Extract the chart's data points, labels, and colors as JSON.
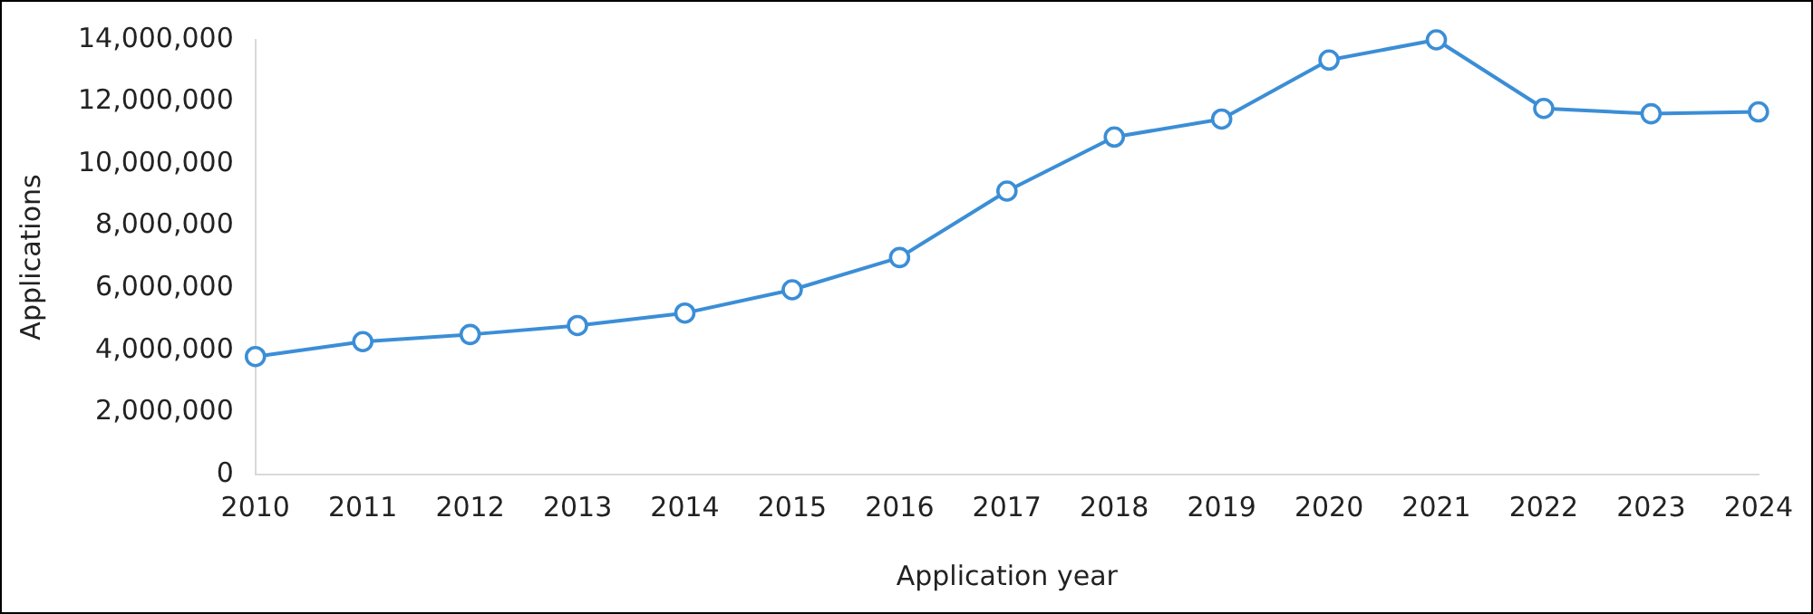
{
  "chart_data": {
    "type": "line",
    "xlabel": "Application year",
    "ylabel": "Applications",
    "categories": [
      "2010",
      "2011",
      "2012",
      "2013",
      "2014",
      "2015",
      "2016",
      "2017",
      "2018",
      "2019",
      "2020",
      "2021",
      "2022",
      "2023",
      "2024"
    ],
    "series": [
      {
        "color": "#3b8ed6",
        "values": [
          3800000,
          4280000,
          4510000,
          4800000,
          5200000,
          5950000,
          6990000,
          9130000,
          10870000,
          11450000,
          13350000,
          14000000,
          11790000,
          11620000,
          11680000
        ]
      }
    ],
    "ylim": [
      0,
      14000000
    ],
    "yticks": [
      0,
      {
        "value": 2000000,
        "label": "2,000,000"
      },
      {
        "value": 4000000,
        "label": "4,000,000"
      },
      {
        "value": 6000000,
        "label": "6,000,000"
      },
      {
        "value": 8000000,
        "label": "8,000,000"
      },
      {
        "value": 10000000,
        "label": "10,000,000"
      },
      {
        "value": 12000000,
        "label": "12,000,000"
      },
      {
        "value": 14000000,
        "label": "14,000,000"
      }
    ],
    "grid": false,
    "legend": false,
    "marker": "circle",
    "line_style": "solid"
  }
}
